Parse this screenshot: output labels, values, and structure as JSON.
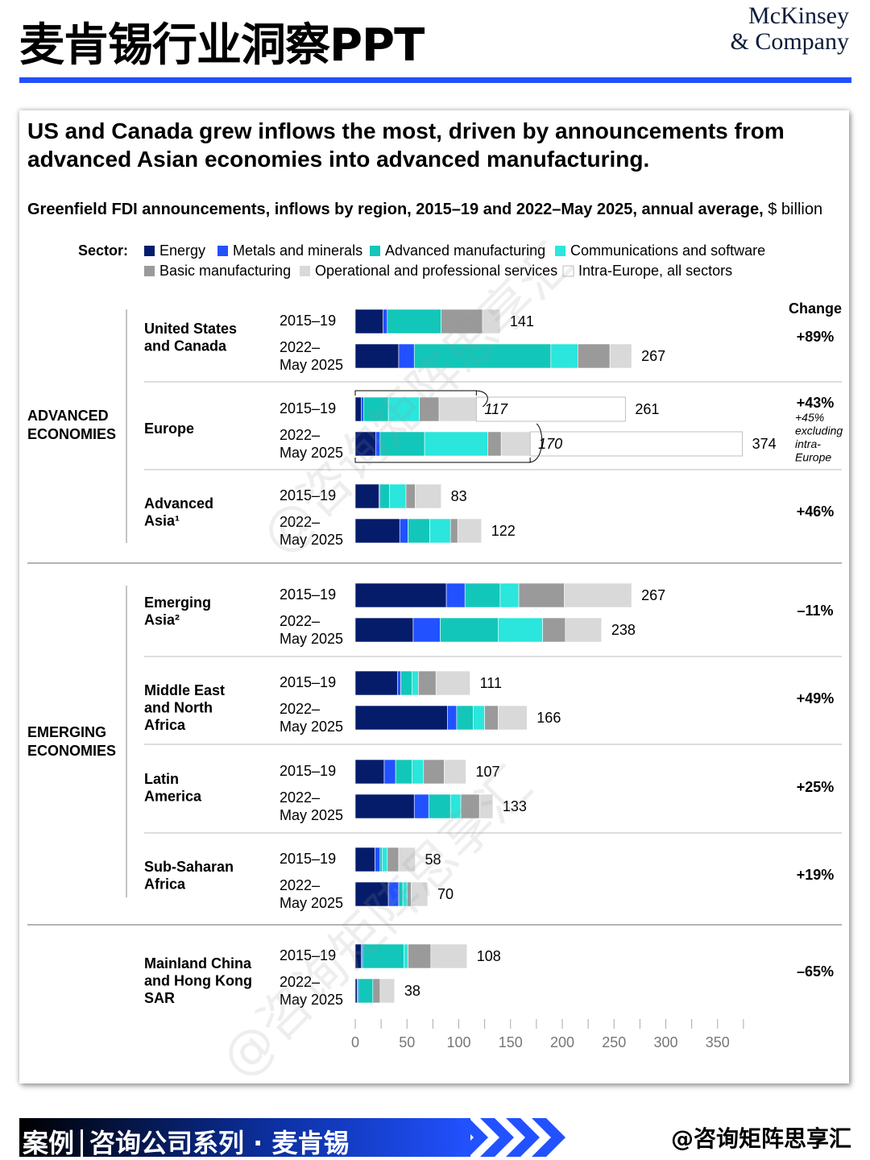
{
  "header": {
    "title": "麦肯锡行业洞察PPT",
    "brand_line1": "McKinsey",
    "brand_line2": "& Company",
    "accent_color": "#2251ff"
  },
  "card": {
    "headline_line1": "US and Canada grew inflows the most, driven by announcements from",
    "headline_line2": "advanced Asian economies into advanced manufacturing.",
    "subtitle_bold": "Greenfield FDI announcements, inflows by region, 2015–19 and 2022–May 2025, annual average,",
    "subtitle_unit": "$ billion"
  },
  "footer": {
    "part1": "案例",
    "part2": "咨询公司系列 · 麦肯锡",
    "handle": "@咨询矩阵思享汇"
  },
  "watermark": "@咨询矩阵思享汇",
  "chart_data": {
    "type": "bar",
    "orientation": "horizontal",
    "stacked": true,
    "legend_title": "Sector:",
    "change_header": "Change",
    "xlim": [
      0,
      375
    ],
    "x_ticks": [
      0,
      50,
      100,
      150,
      200,
      250,
      300,
      350
    ],
    "sectors": [
      {
        "name": "Energy",
        "color": "#051c6b"
      },
      {
        "name": "Metals and minerals",
        "color": "#2251ff"
      },
      {
        "name": "Advanced manufacturing",
        "color": "#12c7b9"
      },
      {
        "name": "Communications and software",
        "color": "#2ae6dc"
      },
      {
        "name": "Basic manufacturing",
        "color": "#9a9a9a"
      },
      {
        "name": "Operational and professional services",
        "color": "#d9d9d9"
      },
      {
        "name": "Intra-Europe, all sectors",
        "color": "#ffffff"
      }
    ],
    "groups": [
      {
        "label_lines": [
          "ADVANCED",
          "ECONOMIES"
        ],
        "regions": [
          0,
          1,
          2
        ]
      },
      {
        "label_lines": [
          "EMERGING",
          "ECONOMIES"
        ],
        "regions": [
          3,
          4,
          5,
          6
        ]
      }
    ],
    "period_labels": {
      "p1": [
        "2015–19"
      ],
      "p2": [
        "2022–",
        "May 2025"
      ]
    },
    "regions": [
      {
        "name_lines": [
          "United States",
          "and Canada"
        ],
        "change": "+89%",
        "bars": [
          {
            "period": "2015–19",
            "total": "141",
            "values": [
              27,
              4,
              52,
              0,
              40,
              17,
              0
            ]
          },
          {
            "period": "2022–May 2025",
            "total": "267",
            "values": [
              42,
              15,
              132,
              26,
              31,
              21,
              0
            ]
          }
        ]
      },
      {
        "name_lines": [
          "Europe"
        ],
        "change": "+43%",
        "change_note_lines": [
          "+45%",
          "excluding",
          "intra-",
          "Europe"
        ],
        "bars": [
          {
            "period": "2015–19",
            "total": "261",
            "values": [
              6,
              2,
              24,
              30,
              19,
              36,
              144
            ],
            "subtotal": "117"
          },
          {
            "period": "2022–May 2025",
            "total": "374",
            "values": [
              20,
              4,
              43,
              61,
              13,
              28,
              205
            ],
            "subtotal": "170"
          }
        ]
      },
      {
        "name_lines": [
          "Advanced",
          "Asia¹"
        ],
        "change": "+46%",
        "bars": [
          {
            "period": "2015–19",
            "total": "83",
            "values": [
              23,
              1,
              9,
              16,
              9,
              25,
              0
            ]
          },
          {
            "period": "2022–May 2025",
            "total": "122",
            "values": [
              43,
              8,
              21,
              20,
              7,
              23,
              0
            ]
          }
        ]
      },
      {
        "name_lines": [
          "Emerging",
          "Asia²"
        ],
        "change": "–11%",
        "bars": [
          {
            "period": "2015–19",
            "total": "267",
            "values": [
              88,
              18,
              34,
              18,
              44,
              65,
              0
            ]
          },
          {
            "period": "2022–May 2025",
            "total": "238",
            "values": [
              56,
              26,
              56,
              43,
              22,
              35,
              0
            ]
          }
        ]
      },
      {
        "name_lines": [
          "Middle East",
          "and North",
          "Africa"
        ],
        "change": "+49%",
        "bars": [
          {
            "period": "2015–19",
            "total": "111",
            "values": [
              41,
              3,
              11,
              6,
              17,
              33,
              0
            ]
          },
          {
            "period": "2022–May 2025",
            "total": "166",
            "values": [
              89,
              9,
              16,
              11,
              13,
              28,
              0
            ]
          }
        ]
      },
      {
        "name_lines": [
          "Latin",
          "America"
        ],
        "change": "+25%",
        "bars": [
          {
            "period": "2015–19",
            "total": "107",
            "values": [
              28,
              11,
              16,
              11,
              20,
              21,
              0
            ]
          },
          {
            "period": "2022–May 2025",
            "total": "133",
            "values": [
              57,
              14,
              21,
              10,
              18,
              13,
              0
            ]
          }
        ]
      },
      {
        "name_lines": [
          "Sub-Saharan",
          "Africa"
        ],
        "change": "+19%",
        "bars": [
          {
            "period": "2015–19",
            "total": "58",
            "values": [
              19,
              5,
              2,
              5,
              11,
              16,
              0
            ]
          },
          {
            "period": "2022–May 2025",
            "total": "70",
            "values": [
              32,
              10,
              4,
              4,
              4,
              16,
              0
            ]
          }
        ]
      },
      {
        "name_lines": [
          "Mainland China",
          "and Hong Kong",
          "SAR"
        ],
        "change": "–65%",
        "bars": [
          {
            "period": "2015–19",
            "total": "108",
            "values": [
              6,
              1,
              40,
              4,
              22,
              35,
              0
            ]
          },
          {
            "period": "2022–May 2025",
            "total": "38",
            "values": [
              2,
              1,
              14,
              0,
              7,
              14,
              0
            ]
          }
        ]
      }
    ]
  }
}
